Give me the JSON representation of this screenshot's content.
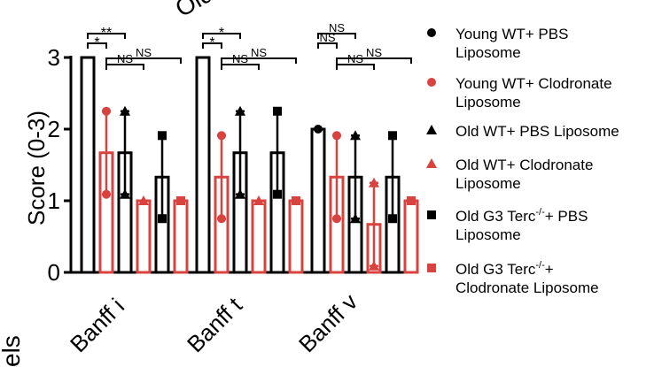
{
  "chart_data": {
    "type": "bar",
    "ylabel": "Score (0-3)",
    "ylim": [
      0,
      3
    ],
    "yticks": [
      "0",
      "1",
      "2",
      "3"
    ],
    "categories": [
      "Banff i",
      "Banff t",
      "Banff v"
    ],
    "series": [
      {
        "name": "Young WT+ PBS Liposome",
        "legend_lines": [
          "Young WT+ PBS",
          "Liposome"
        ],
        "color": "#000000",
        "marker": "circle",
        "values": [
          3.0,
          3.0,
          2.0
        ],
        "err": [
          0,
          0,
          0
        ]
      },
      {
        "name": "Young WT+ Clodronate Liposome",
        "legend_lines": [
          "Young WT+ Clodronate",
          "Liposome"
        ],
        "color": "#d9433f",
        "marker": "circle",
        "values": [
          1.67,
          1.33,
          1.33
        ],
        "err": [
          0.58,
          0.58,
          0.58
        ]
      },
      {
        "name": "Old WT+ PBS Liposome",
        "legend_lines": [
          "Old WT+ PBS Liposome"
        ],
        "color": "#000000",
        "marker": "triangle",
        "values": [
          1.67,
          1.67,
          1.33
        ],
        "err": [
          0.58,
          0.58,
          0.58
        ]
      },
      {
        "name": "Old WT+ Clodronate Liposome",
        "legend_lines": [
          "Old WT+ Clodronate",
          "Liposome"
        ],
        "color": "#d9433f",
        "marker": "triangle",
        "values": [
          1.0,
          1.0,
          0.67
        ],
        "err": [
          0,
          0,
          0.58
        ]
      },
      {
        "name": "Old G3 Terc-/-+ PBS Liposome",
        "legend_lines": [
          "Old G3 Terc",
          "Liposome"
        ],
        "legend_sup": "-/-",
        "legend_suffix": "+ PBS",
        "color": "#000000",
        "marker": "square",
        "values": [
          1.33,
          1.67,
          1.33
        ],
        "err": [
          0.58,
          0.58,
          0.58
        ]
      },
      {
        "name": "Old G3 Terc-/-+ Clodronate Liposome",
        "legend_lines": [
          "Old G3 Terc",
          "Clodronate Liposome"
        ],
        "legend_sup": "-/-",
        "legend_suffix": "+",
        "color": "#d9433f",
        "marker": "square",
        "values": [
          1.0,
          1.0,
          1.0
        ],
        "err": [
          0,
          0,
          0
        ]
      }
    ],
    "significance": [
      {
        "label": "*"
      },
      {
        "label": "**"
      },
      {
        "label": "NS"
      },
      {
        "label": "NS"
      },
      {
        "label": "*"
      },
      {
        "label": "*"
      },
      {
        "label": "NS"
      },
      {
        "label": "NS"
      },
      {
        "label": "NS"
      },
      {
        "label": "NS"
      },
      {
        "label": "NS"
      },
      {
        "label": "NS"
      }
    ],
    "partial_title": "Old",
    "partial_side_label": "els"
  }
}
